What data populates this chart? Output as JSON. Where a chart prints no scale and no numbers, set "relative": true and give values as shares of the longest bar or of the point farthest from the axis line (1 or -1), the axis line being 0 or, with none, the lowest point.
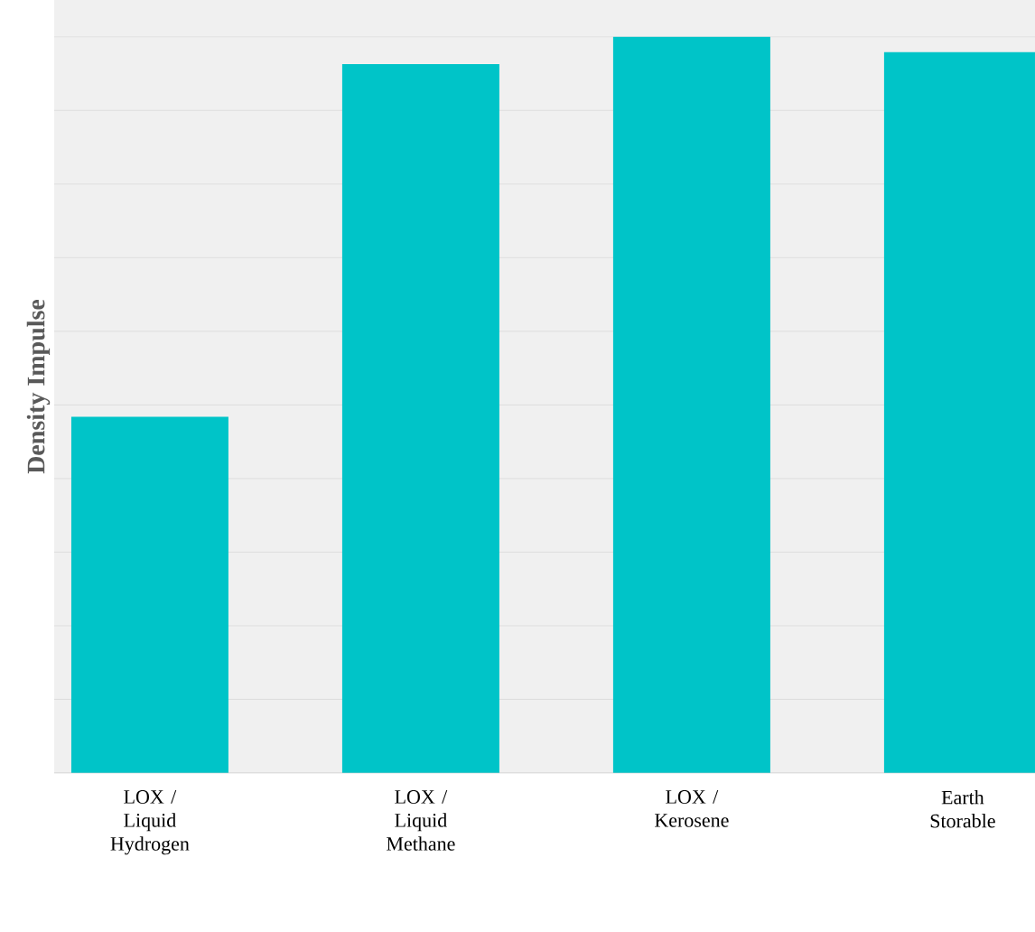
{
  "chart_data": {
    "type": "bar",
    "ylabel": "Density Impulse",
    "relative": true,
    "grid": "y",
    "color": "#00c4c8",
    "categories": [
      "LOX / Liquid Hydrogen",
      "LOX / Liquid Methane",
      "LOX / Kerosene",
      "Earth Storable"
    ],
    "values": [
      0.484,
      0.963,
      1.0,
      0.979
    ]
  }
}
